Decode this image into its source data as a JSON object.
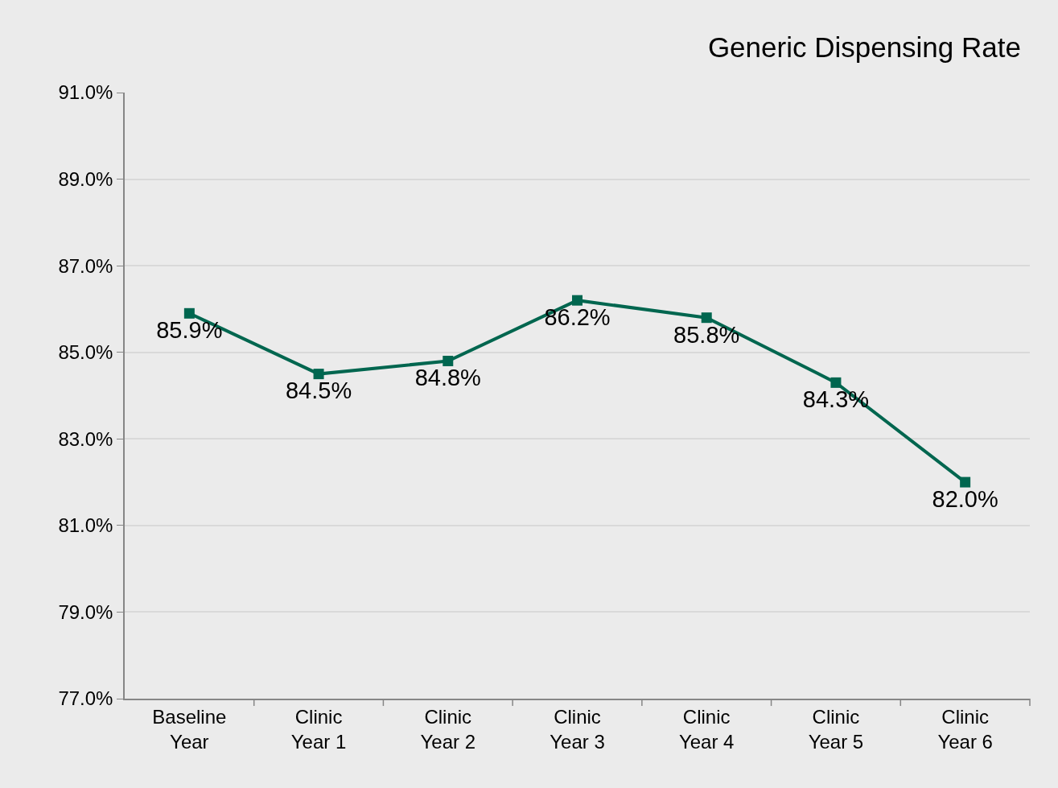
{
  "chart_data": {
    "type": "line",
    "title": "Generic Dispensing Rate",
    "categories": [
      "Baseline Year",
      "Clinic Year 1",
      "Clinic Year 2",
      "Clinic Year 3",
      "Clinic Year 4",
      "Clinic Year 5",
      "Clinic Year 6"
    ],
    "series": [
      {
        "color": "#00664f",
        "values": [
          85.9,
          84.5,
          84.8,
          86.2,
          85.8,
          84.3,
          82.0
        ],
        "value_labels": [
          "85.9%",
          "84.5%",
          "84.8%",
          "86.2%",
          "85.8%",
          "84.3%",
          "82.0%"
        ]
      }
    ],
    "ylim": [
      77,
      91
    ],
    "yticks": [
      {
        "value": 77,
        "label": "77.0%"
      },
      {
        "value": 79,
        "label": "79.0%"
      },
      {
        "value": 81,
        "label": "81.0%"
      },
      {
        "value": 83,
        "label": "83.0%"
      },
      {
        "value": 85,
        "label": "85.0%"
      },
      {
        "value": 87,
        "label": "87.0%"
      },
      {
        "value": 89,
        "label": "89.0%"
      },
      {
        "value": 91,
        "label": "91.0%"
      }
    ],
    "grid": "y",
    "marker": "square",
    "line_style": "solid",
    "legend": false
  }
}
